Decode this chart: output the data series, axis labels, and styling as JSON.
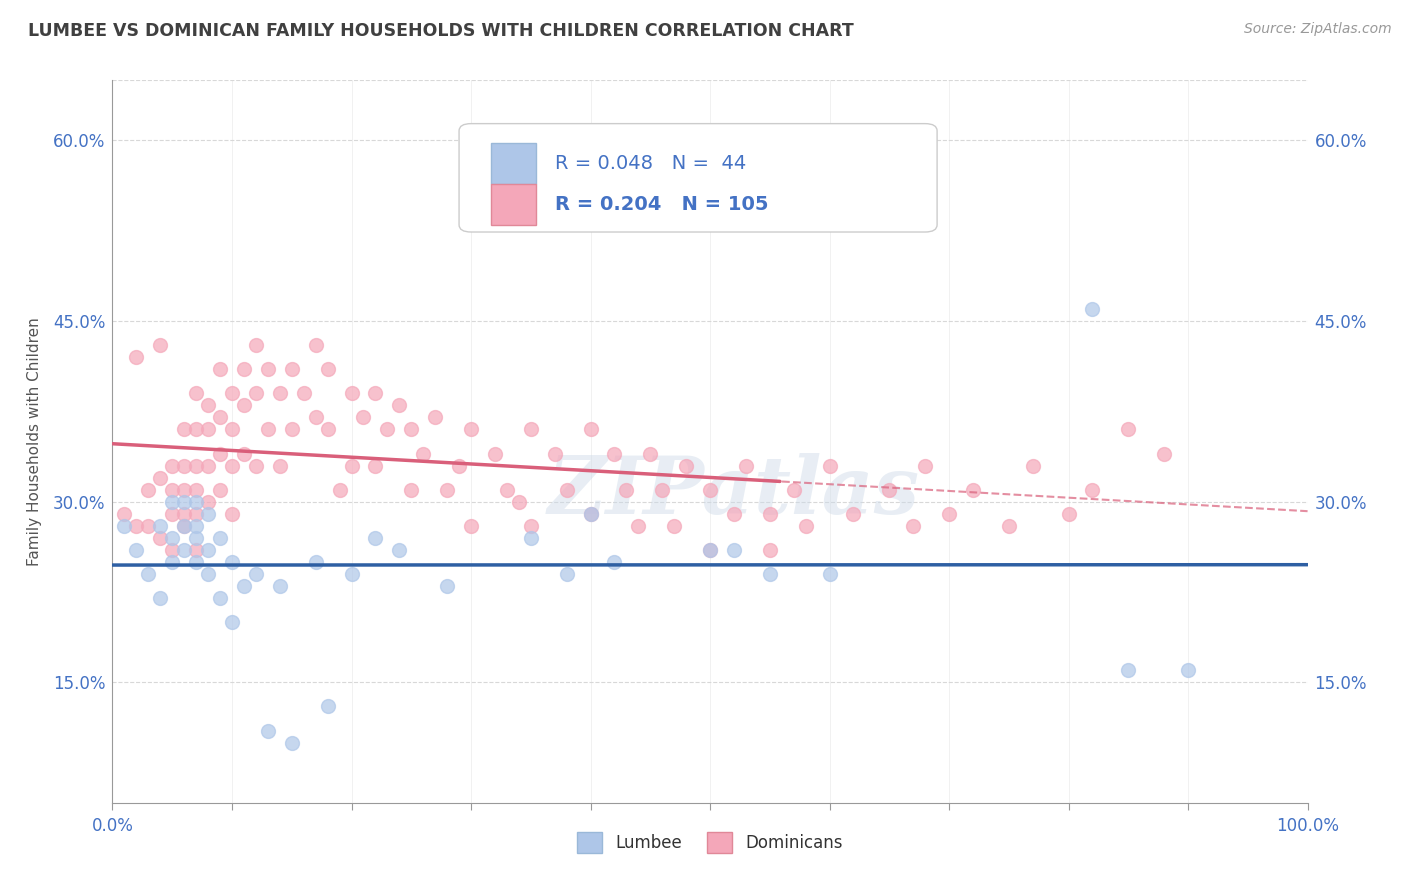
{
  "title": "LUMBEE VS DOMINICAN FAMILY HOUSEHOLDS WITH CHILDREN CORRELATION CHART",
  "source": "Source: ZipAtlas.com",
  "ylabel": "Family Households with Children",
  "xlim": [
    0.0,
    1.0
  ],
  "ylim": [
    0.05,
    0.65
  ],
  "xticks": [
    0.0,
    0.1,
    0.2,
    0.3,
    0.4,
    0.5,
    0.6,
    0.7,
    0.8,
    0.9,
    1.0
  ],
  "yticks": [
    0.15,
    0.3,
    0.45,
    0.6
  ],
  "ytick_labels": [
    "15.0%",
    "30.0%",
    "45.0%",
    "60.0%"
  ],
  "xtick_labels": [
    "0.0%",
    "",
    "",
    "",
    "",
    "",
    "",
    "",
    "",
    "",
    "100.0%"
  ],
  "lumbee_color": "#aec6e8",
  "dominican_color": "#f4a7b9",
  "lumbee_line_color": "#2e5fa3",
  "dominican_line_color": "#d95f7a",
  "lumbee_R": 0.048,
  "lumbee_N": 44,
  "dominican_R": 0.204,
  "dominican_N": 105,
  "lumbee_x": [
    0.01,
    0.02,
    0.03,
    0.04,
    0.04,
    0.05,
    0.05,
    0.05,
    0.06,
    0.06,
    0.06,
    0.07,
    0.07,
    0.07,
    0.07,
    0.08,
    0.08,
    0.08,
    0.09,
    0.09,
    0.1,
    0.1,
    0.11,
    0.12,
    0.13,
    0.14,
    0.15,
    0.17,
    0.18,
    0.2,
    0.22,
    0.24,
    0.28,
    0.35,
    0.38,
    0.4,
    0.42,
    0.5,
    0.52,
    0.55,
    0.6,
    0.82,
    0.85,
    0.9
  ],
  "lumbee_y": [
    0.28,
    0.26,
    0.24,
    0.22,
    0.28,
    0.3,
    0.27,
    0.25,
    0.3,
    0.28,
    0.26,
    0.28,
    0.25,
    0.3,
    0.27,
    0.29,
    0.26,
    0.24,
    0.27,
    0.22,
    0.25,
    0.2,
    0.23,
    0.24,
    0.11,
    0.23,
    0.1,
    0.25,
    0.13,
    0.24,
    0.27,
    0.26,
    0.23,
    0.27,
    0.24,
    0.29,
    0.25,
    0.26,
    0.26,
    0.24,
    0.24,
    0.46,
    0.16,
    0.16
  ],
  "dominican_x": [
    0.01,
    0.02,
    0.02,
    0.03,
    0.03,
    0.04,
    0.04,
    0.04,
    0.05,
    0.05,
    0.05,
    0.05,
    0.06,
    0.06,
    0.06,
    0.06,
    0.06,
    0.07,
    0.07,
    0.07,
    0.07,
    0.07,
    0.07,
    0.08,
    0.08,
    0.08,
    0.08,
    0.09,
    0.09,
    0.09,
    0.09,
    0.1,
    0.1,
    0.1,
    0.1,
    0.11,
    0.11,
    0.11,
    0.12,
    0.12,
    0.12,
    0.13,
    0.13,
    0.14,
    0.14,
    0.15,
    0.15,
    0.16,
    0.17,
    0.17,
    0.18,
    0.18,
    0.19,
    0.2,
    0.2,
    0.21,
    0.22,
    0.22,
    0.23,
    0.24,
    0.25,
    0.25,
    0.26,
    0.27,
    0.28,
    0.29,
    0.3,
    0.3,
    0.32,
    0.33,
    0.34,
    0.35,
    0.35,
    0.37,
    0.38,
    0.4,
    0.4,
    0.42,
    0.43,
    0.44,
    0.45,
    0.46,
    0.47,
    0.48,
    0.5,
    0.5,
    0.52,
    0.53,
    0.55,
    0.55,
    0.57,
    0.58,
    0.6,
    0.62,
    0.65,
    0.67,
    0.68,
    0.7,
    0.72,
    0.75,
    0.77,
    0.8,
    0.82,
    0.85,
    0.88
  ],
  "dominican_y": [
    0.29,
    0.42,
    0.28,
    0.31,
    0.28,
    0.43,
    0.32,
    0.27,
    0.31,
    0.33,
    0.29,
    0.26,
    0.36,
    0.29,
    0.33,
    0.31,
    0.28,
    0.39,
    0.36,
    0.33,
    0.31,
    0.29,
    0.26,
    0.38,
    0.36,
    0.33,
    0.3,
    0.41,
    0.37,
    0.34,
    0.31,
    0.39,
    0.36,
    0.33,
    0.29,
    0.41,
    0.38,
    0.34,
    0.43,
    0.39,
    0.33,
    0.41,
    0.36,
    0.39,
    0.33,
    0.41,
    0.36,
    0.39,
    0.43,
    0.37,
    0.41,
    0.36,
    0.31,
    0.39,
    0.33,
    0.37,
    0.39,
    0.33,
    0.36,
    0.38,
    0.36,
    0.31,
    0.34,
    0.37,
    0.31,
    0.33,
    0.36,
    0.28,
    0.34,
    0.31,
    0.3,
    0.36,
    0.28,
    0.34,
    0.31,
    0.36,
    0.29,
    0.34,
    0.31,
    0.28,
    0.34,
    0.31,
    0.28,
    0.33,
    0.31,
    0.26,
    0.29,
    0.33,
    0.29,
    0.26,
    0.31,
    0.28,
    0.33,
    0.29,
    0.31,
    0.28,
    0.33,
    0.29,
    0.31,
    0.28,
    0.33,
    0.29,
    0.31,
    0.36,
    0.34
  ],
  "watermark": "ZIPatlas",
  "bg_color": "#ffffff",
  "grid_color": "#d8d8d8",
  "title_color": "#404040",
  "axis_color": "#4472c4",
  "legend_text_color": "#4472c4"
}
